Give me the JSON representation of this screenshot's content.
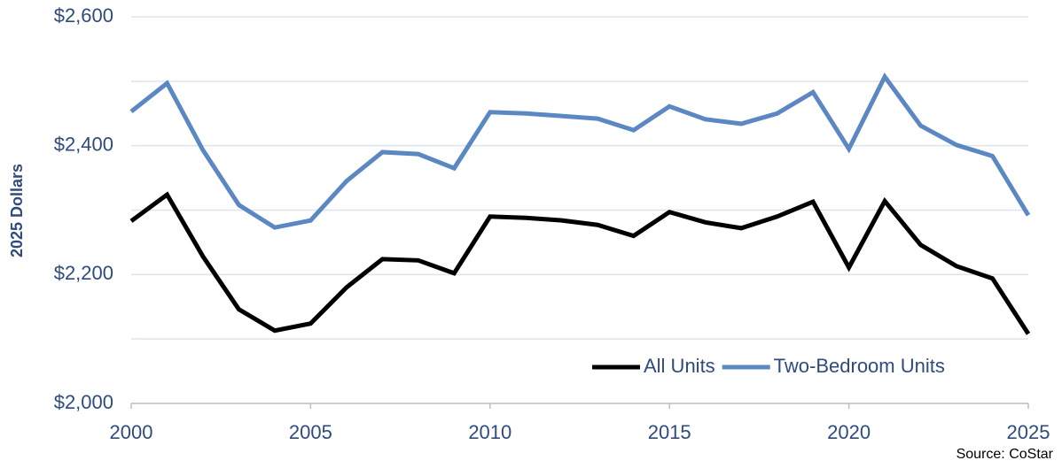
{
  "chart_data": {
    "type": "line",
    "y_label": "2025 Dollars",
    "source": "Source: CoStar",
    "x": [
      2000,
      2001,
      2002,
      2003,
      2004,
      2005,
      2006,
      2007,
      2008,
      2009,
      2010,
      2011,
      2012,
      2013,
      2014,
      2015,
      2016,
      2017,
      2018,
      2019,
      2020,
      2021,
      2022,
      2023,
      2024,
      2025
    ],
    "series": [
      {
        "name": "All Units",
        "color": "#000000",
        "values": [
          2283,
          2324,
          2228,
          2146,
          2113,
          2124,
          2180,
          2224,
          2222,
          2202,
          2290,
          2288,
          2284,
          2277,
          2260,
          2297,
          2281,
          2272,
          2290,
          2313,
          2211,
          2314,
          2246,
          2213,
          2194,
          2108
        ]
      },
      {
        "name": "Two-Bedroom Units",
        "color": "#5b87c2",
        "values": [
          2453,
          2497,
          2393,
          2308,
          2273,
          2284,
          2345,
          2390,
          2387,
          2365,
          2452,
          2450,
          2446,
          2442,
          2424,
          2461,
          2441,
          2434,
          2450,
          2483,
          2395,
          2507,
          2431,
          2401,
          2384,
          2292
        ]
      }
    ],
    "xlim": [
      2000,
      2025
    ],
    "xticks": [
      2000,
      2005,
      2010,
      2015,
      2020,
      2025
    ],
    "ylim": [
      2000,
      2600
    ],
    "yticks": [
      {
        "value": 2000,
        "label": "$2,000"
      },
      {
        "value": 2200,
        "label": "$2,200"
      },
      {
        "value": 2400,
        "label": "$2,400"
      },
      {
        "value": 2600,
        "label": "$2,600"
      }
    ],
    "ygrid": [
      2000,
      2100,
      2200,
      2300,
      2400,
      2500,
      2600
    ],
    "grid": true,
    "legend": "lower right"
  }
}
